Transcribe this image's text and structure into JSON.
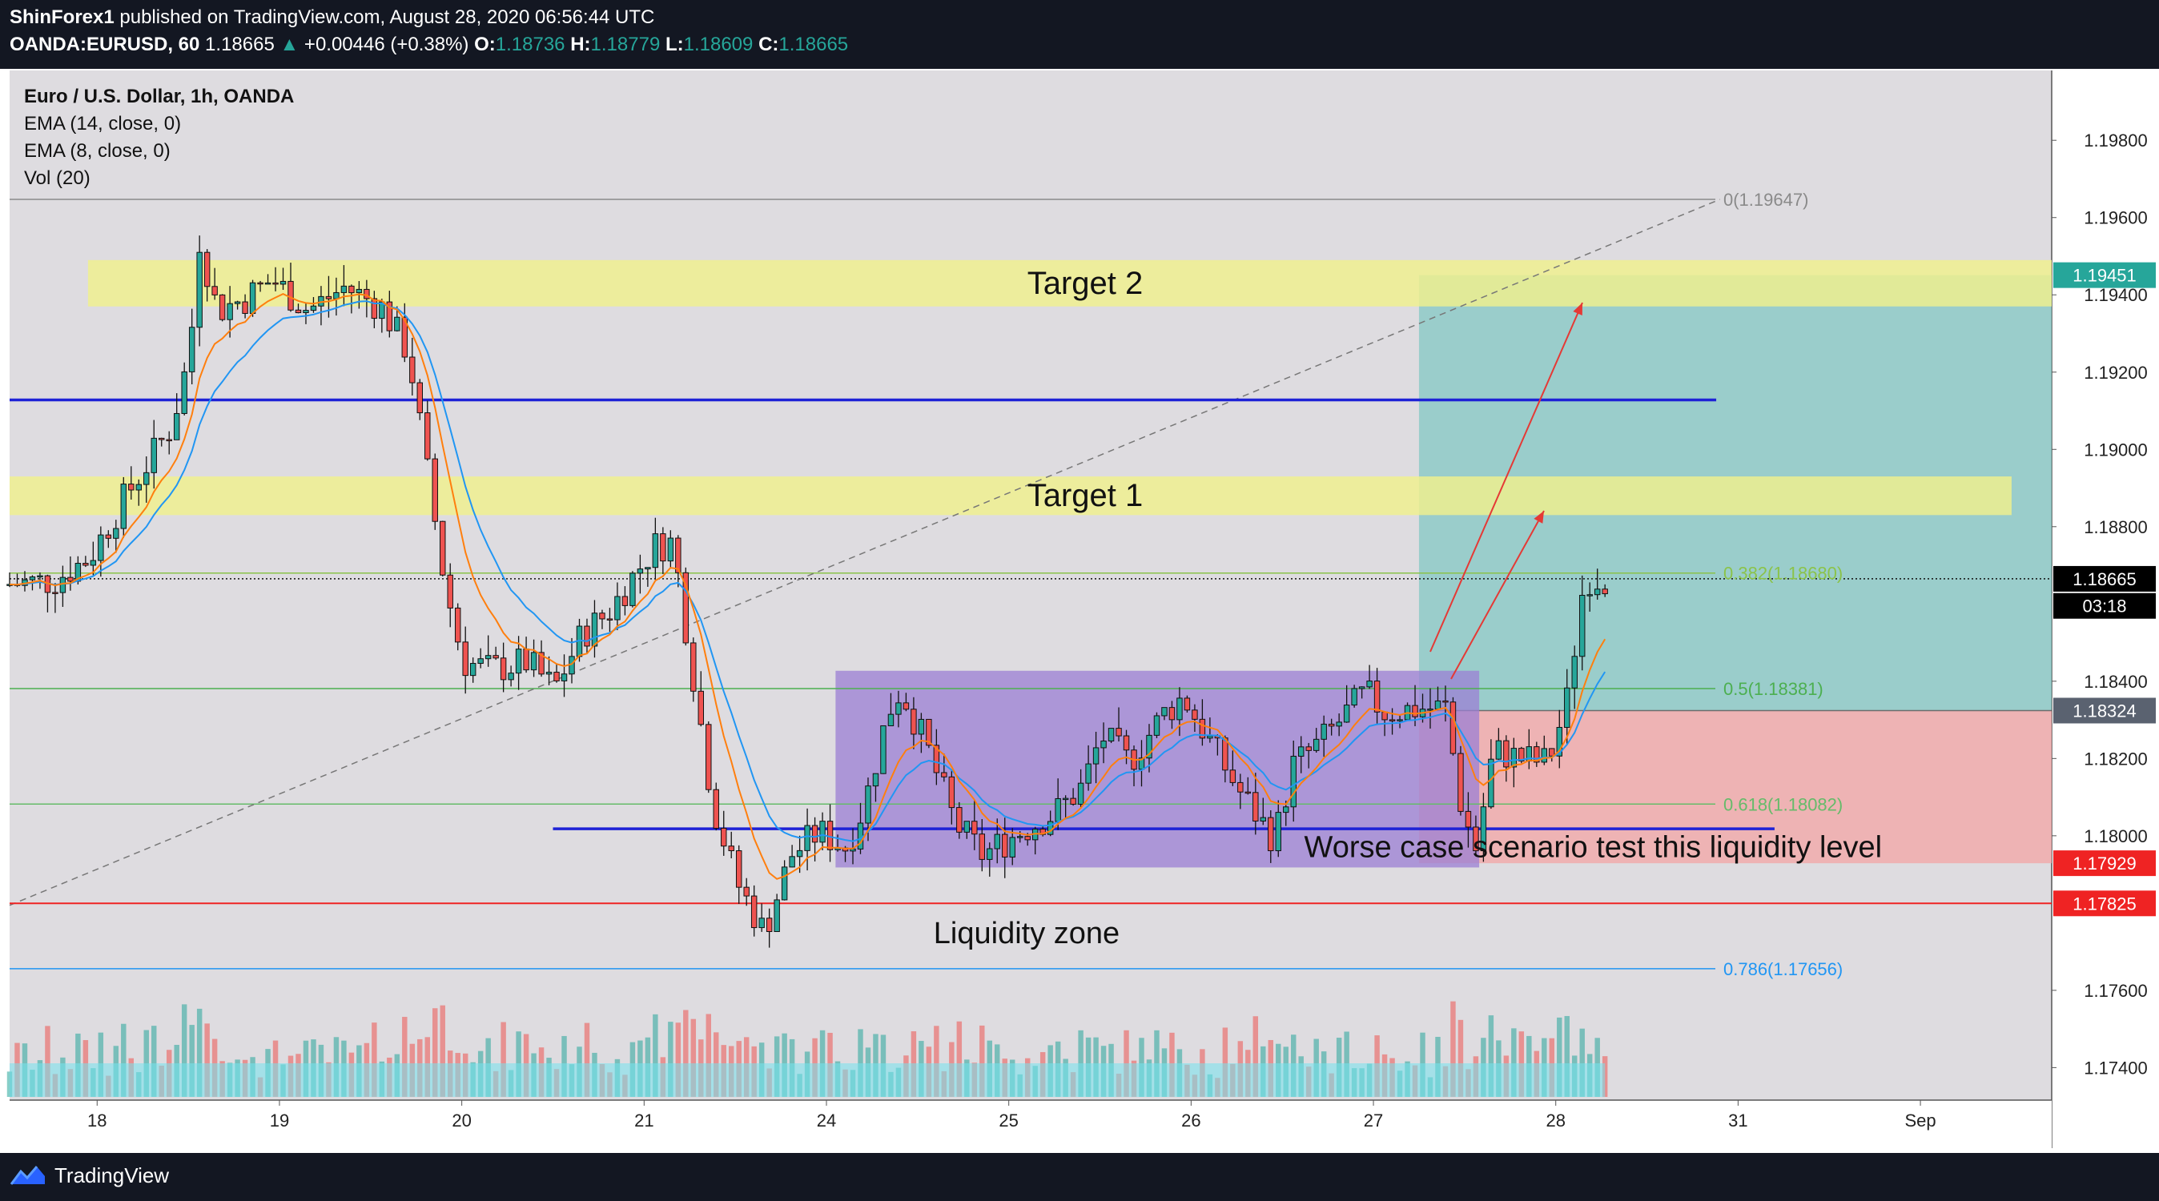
{
  "header": {
    "publisher": "ShinForex1",
    "published_text": "published on TradingView.com, August 28, 2020 06:56:44 UTC",
    "symbol": "OANDA:EURUSD, 60",
    "price": "1.18665",
    "change_arrow": "▲",
    "change": "+0.00446 (+0.38%)",
    "o_label": "O:",
    "o_val": "1.18736",
    "h_label": "H:",
    "h_val": "1.18779",
    "l_label": "L:",
    "l_val": "1.18609",
    "c_label": "C:",
    "c_val": "1.18665"
  },
  "footer": {
    "brand": "TradingView"
  },
  "colors": {
    "background": "#dedce0",
    "bull": "#26a69a",
    "bear": "#ef5350",
    "ema14": "#2196f3",
    "ema8": "#ff7f0e",
    "target_band": "#f0f08c",
    "liquidity_box": "#9b7fd4",
    "profit_zone": "#7fc7c2",
    "loss_zone": "#f2a8a8",
    "level_line": "#1e22d6"
  },
  "chart_data": {
    "type": "candlestick",
    "title": "Euro / U.S. Dollar, 1h, OANDA",
    "indicators": [
      "EMA (14, close, 0)",
      "EMA (8, close, 0)",
      "Vol (20)"
    ],
    "ylim": [
      1.1732,
      1.1996
    ],
    "yticks": [
      "1.19800",
      "1.19600",
      "1.19400",
      "1.19200",
      "1.19000",
      "1.18800",
      "1.18400",
      "1.18200",
      "1.18000",
      "1.17600",
      "1.17400"
    ],
    "xticks": [
      {
        "label": "18",
        "day": 0
      },
      {
        "label": "19",
        "day": 1
      },
      {
        "label": "20",
        "day": 2
      },
      {
        "label": "21",
        "day": 3
      },
      {
        "label": "24",
        "day": 4
      },
      {
        "label": "25",
        "day": 5
      },
      {
        "label": "26",
        "day": 6
      },
      {
        "label": "27",
        "day": 7
      },
      {
        "label": "28",
        "day": 8
      },
      {
        "label": "31",
        "day": 9
      },
      {
        "label": "Sep",
        "day": 10
      }
    ],
    "x_start_day": -0.48,
    "x_end_day": 10.72,
    "last_bar_day": 8.3,
    "fib_levels": [
      {
        "label": "0(1.19647)",
        "value": 1.19647,
        "color": "#8a8a8a"
      },
      {
        "label": "0.382(1.18680)",
        "value": 1.1868,
        "color": "#8bc34a"
      },
      {
        "label": "0.5(1.18381)",
        "value": 1.18381,
        "color": "#4caf50"
      },
      {
        "label": "0.618(1.18082)",
        "value": 1.18082,
        "color": "#66bb6a"
      },
      {
        "label": "0.786(1.17656)",
        "value": 1.17656,
        "color": "#2196f3"
      }
    ],
    "trend_line": {
      "from_day": -0.48,
      "from_price": 1.1782,
      "to_day": 8.9,
      "to_price": 1.19647
    },
    "target_zones": [
      {
        "label": "Target 2",
        "from_day": -0.05,
        "to_day": 10.72,
        "low": 1.1937,
        "high": 1.1949
      },
      {
        "label": "Target 1",
        "from_day": -0.48,
        "to_day": 10.5,
        "low": 1.1883,
        "high": 1.1893
      }
    ],
    "blue_levels": [
      {
        "from_day": -0.48,
        "to_day": 8.88,
        "value": 1.19128
      },
      {
        "from_day": 2.5,
        "to_day": 9.2,
        "value": 1.18018
      }
    ],
    "red_level": 1.17825,
    "liquidity_box": {
      "label": "Liquidity zone",
      "from_day": 4.05,
      "to_day": 7.58,
      "low": 1.17918,
      "high": 1.18427
    },
    "position": {
      "from_day": 7.25,
      "to_day": 10.72,
      "entry": 1.18324,
      "target": 1.19451,
      "stop": 1.17929
    },
    "annotations": [
      {
        "text": "Worse case scenario test this liquidity level",
        "day": 6.62,
        "price": 1.1799
      }
    ],
    "price_tags": [
      {
        "label": "1.19451",
        "value": 1.19451,
        "color": "#26a69a"
      },
      {
        "label": "1.18665",
        "value": 1.18665,
        "color": "#000000"
      },
      {
        "label": "03:18",
        "value": 1.18595,
        "color": "#000000"
      },
      {
        "label": "1.18324",
        "value": 1.18324,
        "color": "#5a6270"
      },
      {
        "label": "1.17929",
        "value": 1.17929,
        "color": "#ef2323"
      },
      {
        "label": "1.17825",
        "value": 1.17825,
        "color": "#ef2323"
      }
    ],
    "series": [
      {
        "name": "Price",
        "points": [
          {
            "day": -0.48,
            "price": 1.1865
          },
          {
            "day": -0.2,
            "price": 1.1866
          },
          {
            "day": 0.0,
            "price": 1.1872
          },
          {
            "day": 0.2,
            "price": 1.1888
          },
          {
            "day": 0.45,
            "price": 1.1906
          },
          {
            "day": 0.55,
            "price": 1.1925
          },
          {
            "day": 0.6,
            "price": 1.1955
          },
          {
            "day": 0.7,
            "price": 1.1936
          },
          {
            "day": 0.85,
            "price": 1.1939
          },
          {
            "day": 1.0,
            "price": 1.1944
          },
          {
            "day": 1.2,
            "price": 1.1936
          },
          {
            "day": 1.4,
            "price": 1.1942
          },
          {
            "day": 1.6,
            "price": 1.1937
          },
          {
            "day": 1.75,
            "price": 1.1925
          },
          {
            "day": 1.85,
            "price": 1.1895
          },
          {
            "day": 1.95,
            "price": 1.1865
          },
          {
            "day": 2.05,
            "price": 1.1845
          },
          {
            "day": 2.2,
            "price": 1.1843
          },
          {
            "day": 2.4,
            "price": 1.1845
          },
          {
            "day": 2.55,
            "price": 1.1838
          },
          {
            "day": 2.7,
            "price": 1.1852
          },
          {
            "day": 2.85,
            "price": 1.1858
          },
          {
            "day": 2.95,
            "price": 1.1865
          },
          {
            "day": 3.1,
            "price": 1.1875
          },
          {
            "day": 3.2,
            "price": 1.1876
          },
          {
            "day": 3.3,
            "price": 1.1845
          },
          {
            "day": 3.42,
            "price": 1.1808
          },
          {
            "day": 3.55,
            "price": 1.1788
          },
          {
            "day": 3.7,
            "price": 1.1775
          },
          {
            "day": 3.85,
            "price": 1.1795
          },
          {
            "day": 4.0,
            "price": 1.1801
          },
          {
            "day": 4.15,
            "price": 1.1797
          },
          {
            "day": 4.25,
            "price": 1.1808
          },
          {
            "day": 4.38,
            "price": 1.1832
          },
          {
            "day": 4.45,
            "price": 1.1838
          },
          {
            "day": 4.6,
            "price": 1.1822
          },
          {
            "day": 4.75,
            "price": 1.1803
          },
          {
            "day": 4.9,
            "price": 1.1795
          },
          {
            "day": 5.1,
            "price": 1.1801
          },
          {
            "day": 5.3,
            "price": 1.1806
          },
          {
            "day": 5.45,
            "price": 1.1813
          },
          {
            "day": 5.55,
            "price": 1.1826
          },
          {
            "day": 5.7,
            "price": 1.1819
          },
          {
            "day": 5.9,
            "price": 1.1832
          },
          {
            "day": 6.0,
            "price": 1.1836
          },
          {
            "day": 6.15,
            "price": 1.1824
          },
          {
            "day": 6.3,
            "price": 1.1812
          },
          {
            "day": 6.5,
            "price": 1.1799
          },
          {
            "day": 6.6,
            "price": 1.1818
          },
          {
            "day": 6.75,
            "price": 1.1824
          },
          {
            "day": 6.9,
            "price": 1.1832
          },
          {
            "day": 7.0,
            "price": 1.1837
          },
          {
            "day": 7.1,
            "price": 1.1832
          },
          {
            "day": 7.3,
            "price": 1.1833
          },
          {
            "day": 7.45,
            "price": 1.1833
          },
          {
            "day": 7.5,
            "price": 1.1812
          },
          {
            "day": 7.6,
            "price": 1.1796
          },
          {
            "day": 7.7,
            "price": 1.1822
          },
          {
            "day": 7.85,
            "price": 1.182
          },
          {
            "day": 8.0,
            "price": 1.1819
          },
          {
            "day": 8.1,
            "price": 1.1834
          },
          {
            "day": 8.2,
            "price": 1.1867
          },
          {
            "day": 8.3,
            "price": 1.18665
          }
        ]
      }
    ]
  }
}
